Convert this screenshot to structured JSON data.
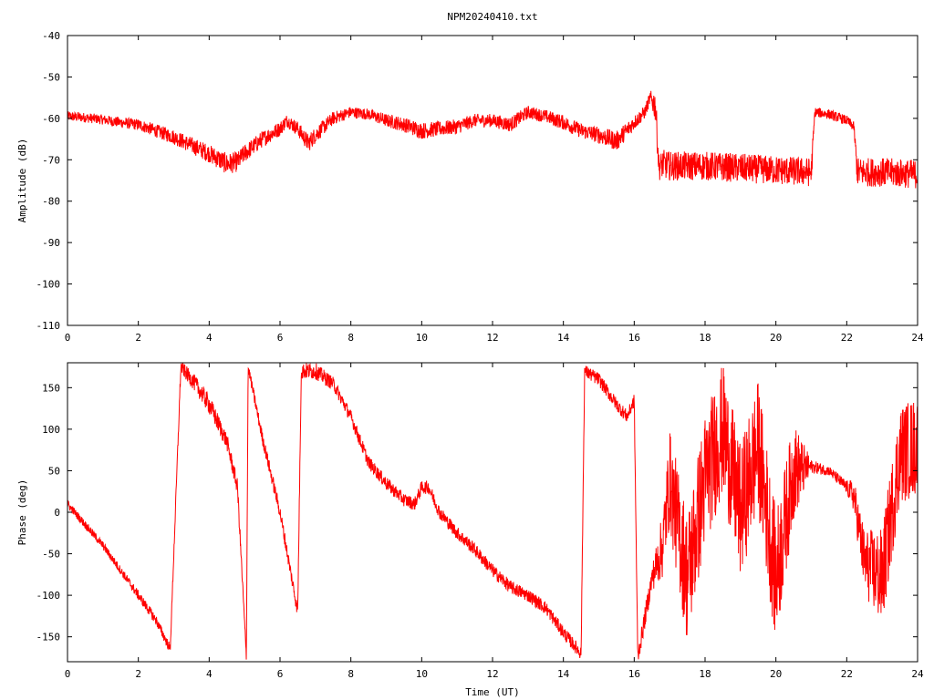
{
  "title": "NPM20240410.txt",
  "colors": {
    "series": "#ff0000",
    "axis": "#000000",
    "background": "#ffffff"
  },
  "chart_data": [
    {
      "type": "line",
      "id": "amplitude",
      "title": "NPM20240410.txt",
      "xlabel": "",
      "ylabel": "Amplitude (dB)",
      "xlim": [
        0,
        24
      ],
      "ylim": [
        -110,
        -40
      ],
      "xticks": [
        0,
        2,
        4,
        6,
        8,
        10,
        12,
        14,
        16,
        18,
        20,
        22,
        24
      ],
      "xtick_labels": [
        "0",
        "2",
        "4",
        "6",
        "8",
        "10",
        "12",
        "14",
        "16",
        "18",
        "20",
        "22",
        "24"
      ],
      "yticks": [
        -40,
        -50,
        -60,
        -70,
        -80,
        -90,
        -100,
        -110
      ],
      "ytick_labels": [
        "-40",
        "-50",
        "-60",
        "-70",
        "-80",
        "-90",
        "-100",
        "-110"
      ],
      "grid": false,
      "legend": "none",
      "series": [
        {
          "color": "#ff0000",
          "x": [
            0,
            0.5,
            1,
            1.5,
            2,
            2.5,
            3,
            3.5,
            4,
            4.5,
            4.8,
            5,
            5.5,
            6,
            6.2,
            6.5,
            6.8,
            7,
            7.5,
            8,
            8.5,
            9,
            9.5,
            10,
            10.5,
            11,
            11.5,
            12,
            12.5,
            13,
            13.5,
            14,
            14.5,
            15,
            15.5,
            16,
            16.3,
            16.45,
            16.6,
            16.7,
            16.8,
            17,
            18,
            19,
            20,
            21,
            21.1,
            21.5,
            22,
            22.2,
            22.3,
            23,
            24
          ],
          "y": [
            -59.5,
            -59.8,
            -60.3,
            -61,
            -61.5,
            -63,
            -64.5,
            -66.5,
            -68.5,
            -71,
            -70.5,
            -68.5,
            -65,
            -62.5,
            -60.5,
            -62.5,
            -66,
            -64,
            -60,
            -58.5,
            -59,
            -60.5,
            -61.5,
            -63,
            -62.5,
            -62,
            -60.5,
            -60.5,
            -61.5,
            -58.5,
            -59.5,
            -61,
            -63,
            -64,
            -65.5,
            -61,
            -58.5,
            -55,
            -57,
            -72,
            -71,
            -71.5,
            -71.5,
            -72,
            -72.5,
            -73,
            -58.5,
            -59,
            -60.5,
            -62,
            -73,
            -73,
            -73.5
          ],
          "noise_db": [
            1.2,
            1.2,
            1.2,
            1.3,
            1.4,
            1.6,
            1.8,
            2,
            2.2,
            2.6,
            2.4,
            2.2,
            2,
            1.8,
            1.6,
            1.8,
            2.2,
            2,
            1.6,
            1.4,
            1.4,
            1.6,
            1.8,
            2,
            1.8,
            1.8,
            1.6,
            1.6,
            1.8,
            1.6,
            1.6,
            1.8,
            1.8,
            2,
            2.4,
            1.8,
            1.6,
            1.6,
            4,
            3,
            3.5,
            3.5,
            3.5,
            3.5,
            3.5,
            3.5,
            1.2,
            1.2,
            1.2,
            1.2,
            3.5,
            3.5,
            3.5
          ]
        }
      ]
    },
    {
      "type": "line",
      "id": "phase",
      "title": "",
      "xlabel": "Time (UT)",
      "ylabel": "Phase (deg)",
      "xlim": [
        0,
        24
      ],
      "ylim": [
        -180,
        180
      ],
      "xticks": [
        0,
        2,
        4,
        6,
        8,
        10,
        12,
        14,
        16,
        18,
        20,
        22,
        24
      ],
      "xtick_labels": [
        "0",
        "2",
        "4",
        "6",
        "8",
        "10",
        "12",
        "14",
        "16",
        "18",
        "20",
        "22",
        "24"
      ],
      "yticks": [
        150,
        100,
        50,
        0,
        -50,
        -100,
        -150
      ],
      "ytick_labels": [
        "150",
        "100",
        "50",
        "0",
        "-50",
        "-100",
        "-150"
      ],
      "grid": false,
      "legend": "none",
      "series": [
        {
          "color": "#ff0000",
          "x": [
            0,
            0.5,
            1,
            1.5,
            2,
            2.5,
            2.9,
            3.2,
            3.6,
            4,
            4.5,
            4.8,
            5.05,
            5.1,
            5.5,
            6,
            6.5,
            6.6,
            7,
            7.5,
            8,
            8.5,
            9,
            9.5,
            9.8,
            10,
            10.2,
            10.5,
            11,
            11.5,
            12,
            12.5,
            13,
            13.5,
            14,
            14.5,
            14.6,
            15,
            15.5,
            15.8,
            16,
            16.1,
            16.5,
            16.8,
            17,
            17.5,
            18,
            18.5,
            19,
            19.5,
            20,
            20.5,
            21,
            21.5,
            22,
            22.2,
            22.5,
            23,
            23.5,
            24
          ],
          "y": [
            10,
            -15,
            -40,
            -70,
            -100,
            -130,
            -165,
            175,
            155,
            130,
            85,
            30,
            -175,
            175,
            90,
            0,
            -120,
            170,
            170,
            155,
            115,
            60,
            35,
            15,
            10,
            30,
            30,
            0,
            -25,
            -45,
            -70,
            -90,
            -100,
            -115,
            -145,
            -170,
            170,
            160,
            130,
            115,
            135,
            -175,
            -80,
            -40,
            40,
            -80,
            40,
            100,
            0,
            80,
            -80,
            50,
            55,
            50,
            30,
            20,
            -60,
            -80,
            70,
            80
          ],
          "noise_deg": [
            5,
            5,
            5,
            5,
            6,
            6,
            6,
            8,
            10,
            12,
            10,
            10,
            6,
            6,
            8,
            8,
            8,
            10,
            10,
            8,
            8,
            8,
            8,
            8,
            8,
            8,
            8,
            8,
            8,
            8,
            8,
            8,
            8,
            8,
            8,
            8,
            8,
            8,
            8,
            8,
            8,
            10,
            15,
            40,
            60,
            80,
            80,
            80,
            80,
            80,
            80,
            60,
            8,
            6,
            8,
            20,
            40,
            60,
            60,
            60
          ]
        }
      ]
    }
  ]
}
